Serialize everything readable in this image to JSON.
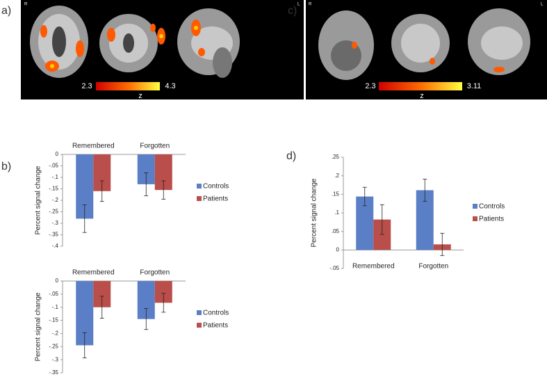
{
  "figure": {
    "panel_labels": [
      "a)",
      "b)",
      "c)",
      "d)"
    ],
    "orientation": {
      "right": "R",
      "left": "L"
    },
    "colorbars": [
      {
        "min_label": "2.3",
        "max_label": "4.3",
        "name": "z"
      },
      {
        "min_label": "2.3",
        "max_label": "3.11",
        "name": "z"
      }
    ]
  },
  "chart_data": [
    {
      "type": "bar",
      "ylabel": "Percent signal change",
      "categories": [
        "Remembered",
        "Forgotten"
      ],
      "series": [
        {
          "name": "Controls",
          "color": "#5a7fc6",
          "values": [
            -0.28,
            -0.13
          ],
          "errors": [
            0.06,
            0.05
          ]
        },
        {
          "name": "Patients",
          "color": "#b94e4b",
          "values": [
            -0.16,
            -0.155
          ],
          "errors": [
            0.045,
            0.04
          ]
        }
      ],
      "ylim": [
        -0.4,
        0
      ],
      "yticks": [
        0,
        {
          "value": -0.05,
          "label": "-.05"
        },
        {
          "value": -0.1,
          "label": "-.1"
        },
        {
          "value": -0.15,
          "label": "-.15"
        },
        {
          "value": -0.2,
          "label": "-.2"
        },
        {
          "value": -0.25,
          "label": "-.25"
        },
        {
          "value": -0.3,
          "label": "-.3"
        },
        {
          "value": -0.35,
          "label": "-.35"
        },
        {
          "value": -0.4,
          "label": "-.4"
        }
      ]
    },
    {
      "type": "bar",
      "ylabel": "Percent signal change",
      "categories": [
        "Remembered",
        "Forgotten"
      ],
      "series": [
        {
          "name": "Controls",
          "color": "#5a7fc6",
          "values": [
            -0.245,
            -0.145
          ],
          "errors": [
            0.048,
            0.04
          ]
        },
        {
          "name": "Patients",
          "color": "#b94e4b",
          "values": [
            -0.1,
            -0.083
          ],
          "errors": [
            0.042,
            0.036
          ]
        }
      ],
      "ylim": [
        -0.35,
        0
      ],
      "yticks": [
        0,
        {
          "value": -0.05,
          "label": "-.05"
        },
        {
          "value": -0.1,
          "label": "-.1"
        },
        {
          "value": -0.15,
          "label": "-.15"
        },
        {
          "value": -0.2,
          "label": "-.2"
        },
        {
          "value": -0.25,
          "label": "-.25"
        },
        {
          "value": -0.3,
          "label": "-.3"
        },
        {
          "value": -0.35,
          "label": "-.35"
        }
      ]
    },
    {
      "type": "bar",
      "ylabel": "Percent signal change",
      "categories": [
        "Remembered",
        "Forgotten"
      ],
      "series": [
        {
          "name": "Controls",
          "color": "#5a7fc6",
          "values": [
            0.144,
            0.161
          ],
          "errors": [
            0.025,
            0.03
          ]
        },
        {
          "name": "Patients",
          "color": "#b94e4b",
          "values": [
            0.082,
            0.015
          ],
          "errors": [
            0.04,
            0.03
          ]
        }
      ],
      "ylim": [
        -0.05,
        0.25
      ],
      "yticks": [
        {
          "value": -0.05,
          "label": "-.05"
        },
        0,
        {
          "value": 0.05,
          "label": ".05"
        },
        {
          "value": 0.1,
          "label": ".1"
        },
        {
          "value": 0.15,
          "label": ".15"
        },
        {
          "value": 0.2,
          "label": ".2"
        },
        {
          "value": 0.25,
          "label": ".25"
        }
      ]
    }
  ]
}
